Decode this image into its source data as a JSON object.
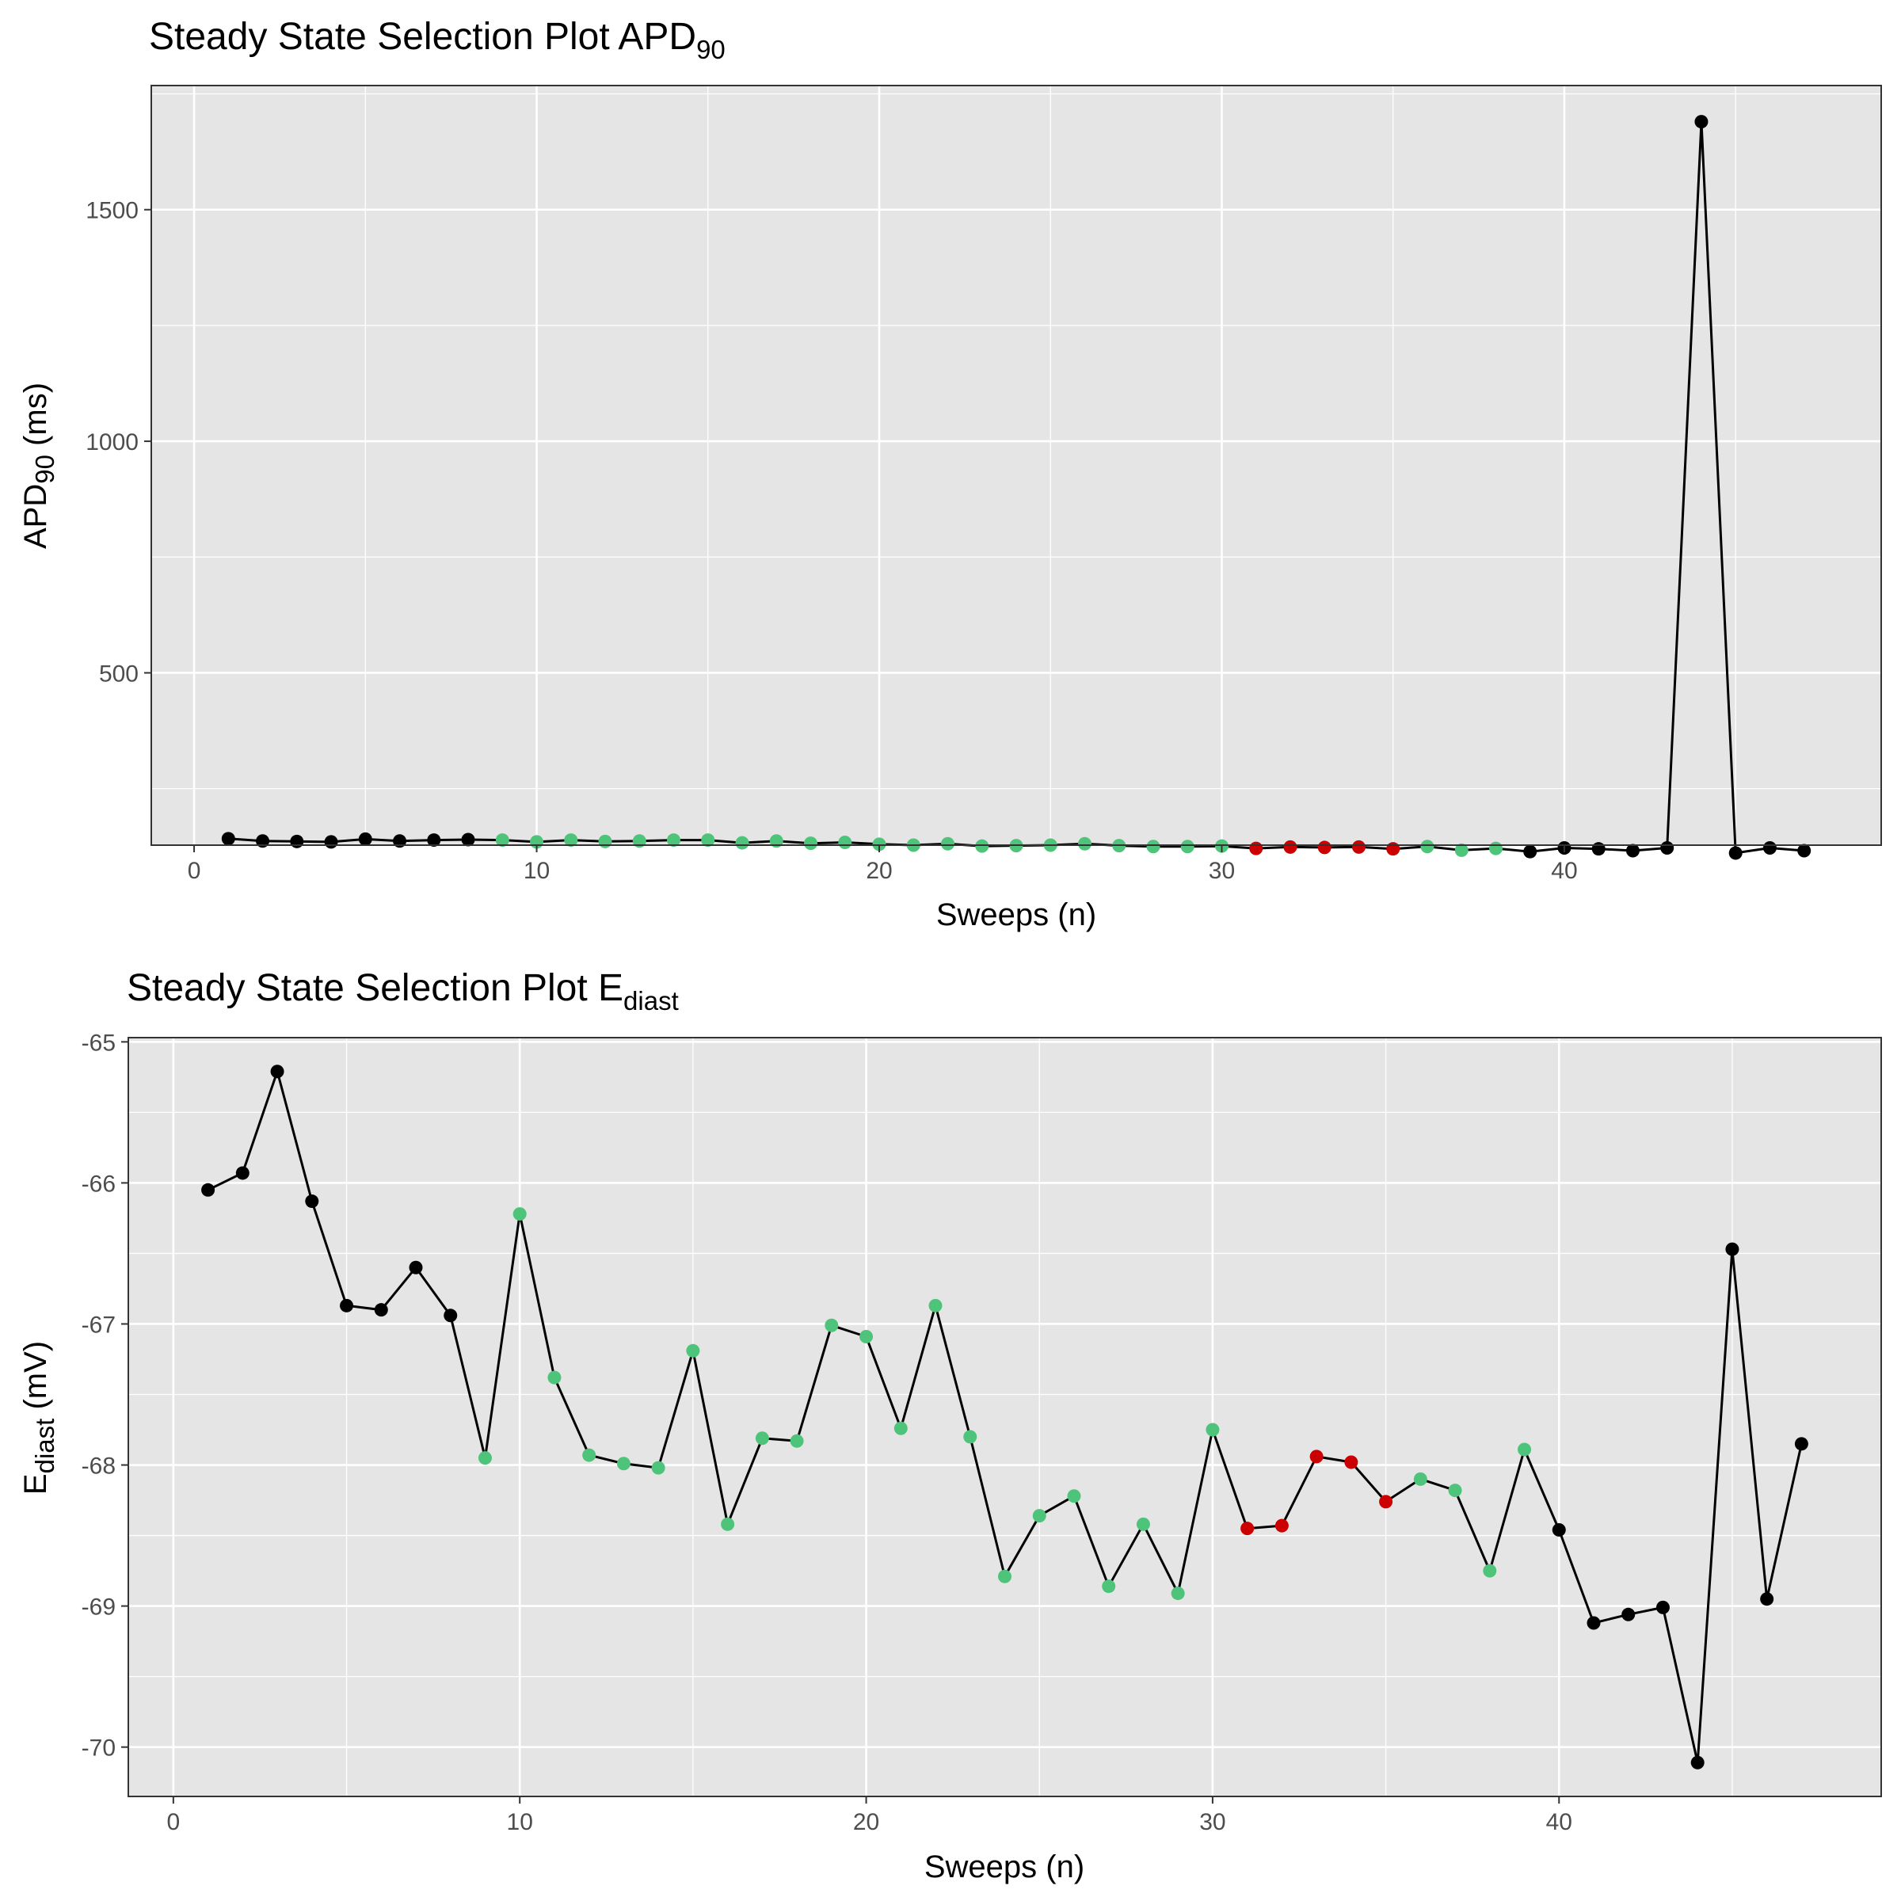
{
  "colors": {
    "default": "#000000",
    "steady": "#4ec47a",
    "selected": "#cc0000"
  },
  "chart_data": [
    {
      "type": "line",
      "title": {
        "main": "Steady State Selection Plot APD",
        "sub": "90"
      },
      "xlabel": "Sweeps (n)",
      "ylabel": {
        "main": "APD",
        "sub": "90",
        "suffix": " (ms)"
      },
      "xlim": [
        -1.25,
        49.25
      ],
      "ylim": [
        128,
        1768
      ],
      "xticks": [
        0,
        10,
        20,
        30,
        40
      ],
      "yticks": [
        500,
        1000,
        1500
      ],
      "x": [
        1,
        2,
        3,
        4,
        5,
        6,
        7,
        8,
        9,
        10,
        11,
        12,
        13,
        14,
        15,
        16,
        17,
        18,
        19,
        20,
        21,
        22,
        23,
        24,
        25,
        26,
        27,
        28,
        29,
        30,
        31,
        32,
        33,
        34,
        35,
        36,
        37,
        38,
        39,
        40,
        41,
        42,
        43,
        44,
        45,
        46,
        47
      ],
      "values": [
        142,
        137,
        136,
        135,
        141,
        137,
        139,
        140,
        139,
        135,
        139,
        136,
        137,
        139,
        139,
        133,
        137,
        132,
        134,
        130,
        128,
        131,
        126,
        127,
        128,
        131,
        127,
        125,
        125,
        126,
        121,
        124,
        123,
        124,
        120,
        125,
        117,
        121,
        114,
        122,
        120,
        116,
        122,
        1690,
        111,
        122,
        116
      ],
      "status": [
        "default",
        "default",
        "default",
        "default",
        "default",
        "default",
        "default",
        "default",
        "steady",
        "steady",
        "steady",
        "steady",
        "steady",
        "steady",
        "steady",
        "steady",
        "steady",
        "steady",
        "steady",
        "steady",
        "steady",
        "steady",
        "steady",
        "steady",
        "steady",
        "steady",
        "steady",
        "steady",
        "steady",
        "steady",
        "selected",
        "selected",
        "selected",
        "selected",
        "selected",
        "steady",
        "steady",
        "steady",
        "default",
        "default",
        "default",
        "default",
        "default",
        "default",
        "default",
        "default",
        "default"
      ],
      "grid": true,
      "legend": "none"
    },
    {
      "type": "line",
      "title": {
        "main": "Steady State Selection Plot E",
        "sub": "diast"
      },
      "xlabel": "Sweeps (n)",
      "ylabel": {
        "main": "E",
        "sub": "diast",
        "suffix": " (mV)"
      },
      "xlim": [
        -1.3,
        49.3
      ],
      "ylim": [
        -70.35,
        -64.97
      ],
      "xticks": [
        0,
        10,
        20,
        30,
        40
      ],
      "yticks": [
        -70,
        -69,
        -68,
        -67,
        -66,
        -65
      ],
      "x": [
        1,
        2,
        3,
        4,
        5,
        6,
        7,
        8,
        9,
        10,
        11,
        12,
        13,
        14,
        15,
        16,
        17,
        18,
        19,
        20,
        21,
        22,
        23,
        24,
        25,
        26,
        27,
        28,
        29,
        30,
        31,
        32,
        33,
        34,
        35,
        36,
        37,
        38,
        39,
        40,
        41,
        42,
        43,
        44,
        45,
        46,
        47
      ],
      "values": [
        -66.05,
        -65.93,
        -65.21,
        -66.13,
        -66.87,
        -66.9,
        -66.6,
        -66.94,
        -67.95,
        -66.22,
        -67.38,
        -67.93,
        -67.99,
        -68.02,
        -67.19,
        -68.42,
        -67.81,
        -67.83,
        -67.01,
        -67.09,
        -67.74,
        -66.87,
        -67.8,
        -68.79,
        -68.36,
        -68.22,
        -68.86,
        -68.42,
        -68.91,
        -67.75,
        -68.45,
        -68.43,
        -67.94,
        -67.98,
        -68.26,
        -68.1,
        -68.18,
        -68.75,
        -67.89,
        -68.46,
        -69.12,
        -69.06,
        -69.01,
        -70.11,
        -66.47,
        -68.95,
        -67.85
      ],
      "status": [
        "default",
        "default",
        "default",
        "default",
        "default",
        "default",
        "default",
        "default",
        "steady",
        "steady",
        "steady",
        "steady",
        "steady",
        "steady",
        "steady",
        "steady",
        "steady",
        "steady",
        "steady",
        "steady",
        "steady",
        "steady",
        "steady",
        "steady",
        "steady",
        "steady",
        "steady",
        "steady",
        "steady",
        "steady",
        "selected",
        "selected",
        "selected",
        "selected",
        "selected",
        "steady",
        "steady",
        "steady",
        "steady",
        "default",
        "default",
        "default",
        "default",
        "default",
        "default",
        "default",
        "default"
      ],
      "grid": true,
      "legend": "none"
    }
  ]
}
